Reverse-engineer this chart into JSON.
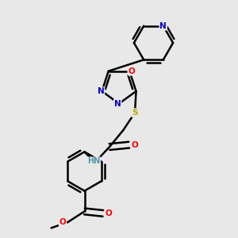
{
  "bg_color": "#e8e8e8",
  "atom_colors": {
    "C": "#000000",
    "N": "#0000cc",
    "O": "#ff0000",
    "S": "#aaaa00",
    "H": "#5599aa"
  },
  "bond_color": "#000000",
  "bond_width": 1.8,
  "figsize": [
    3.0,
    3.0
  ],
  "dpi": 100,
  "xlim": [
    0.15,
    0.85
  ],
  "ylim": [
    0.02,
    1.02
  ]
}
